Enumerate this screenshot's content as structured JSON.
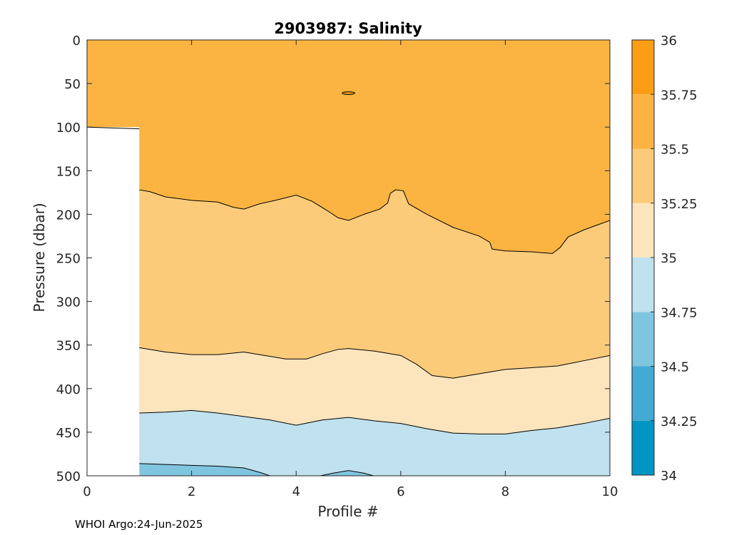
{
  "chart_data": {
    "type": "contour",
    "title": "2903987:  Salinity",
    "xlabel": "Profile #",
    "ylabel": "Pressure (dbar)",
    "footer": "WHOI Argo:24-Jun-2025",
    "xlim": [
      0,
      10
    ],
    "ylim": [
      0,
      500
    ],
    "y_reversed": true,
    "grid": false,
    "x_ticks": [
      "0",
      "2",
      "4",
      "6",
      "8",
      "10"
    ],
    "y_ticks": [
      "0",
      "50",
      "100",
      "150",
      "200",
      "250",
      "300",
      "350",
      "400",
      "450",
      "500"
    ],
    "no_data_region": {
      "x": [
        0,
        1
      ],
      "y_from": 100,
      "y_to": 500
    },
    "colorbar": {
      "levels": [
        34,
        34.25,
        34.5,
        34.75,
        35,
        35.25,
        35.5,
        35.75,
        36
      ],
      "tick_labels": [
        "34",
        "34.25",
        "34.5",
        "34.75",
        "35",
        "35.25",
        "35.5",
        "35.75",
        "36"
      ],
      "colors": [
        "#0095c2",
        "#43aad3",
        "#80c5e0",
        "#c0e1ee",
        "#fce5bd",
        "#fbcb7a",
        "#fbb441",
        "#fc9e15"
      ]
    },
    "contours": [
      {
        "level": 35.5,
        "points": [
          [
            1,
            172
          ],
          [
            1.2,
            174
          ],
          [
            1.5,
            180
          ],
          [
            2,
            184
          ],
          [
            2.5,
            186
          ],
          [
            2.8,
            192
          ],
          [
            3,
            194
          ],
          [
            3.3,
            188
          ],
          [
            3.6,
            184
          ],
          [
            4,
            178
          ],
          [
            4.3,
            185
          ],
          [
            4.6,
            196
          ],
          [
            4.8,
            204
          ],
          [
            5,
            207
          ],
          [
            5.3,
            200
          ],
          [
            5.6,
            194
          ],
          [
            5.75,
            187
          ],
          [
            5.8,
            176
          ],
          [
            5.9,
            172
          ],
          [
            6.05,
            173
          ],
          [
            6.15,
            188
          ],
          [
            6.5,
            200
          ],
          [
            7,
            215
          ],
          [
            7.5,
            225
          ],
          [
            7.7,
            232
          ],
          [
            7.75,
            240
          ],
          [
            8,
            242
          ],
          [
            8.5,
            243
          ],
          [
            8.9,
            245
          ],
          [
            9.05,
            238
          ],
          [
            9.2,
            226
          ],
          [
            9.5,
            218
          ],
          [
            10,
            207
          ]
        ]
      },
      {
        "level": 35.25,
        "points": [
          [
            1,
            353
          ],
          [
            1.5,
            358
          ],
          [
            2,
            361
          ],
          [
            2.5,
            361
          ],
          [
            3,
            358
          ],
          [
            3.4,
            362
          ],
          [
            3.8,
            366
          ],
          [
            4.2,
            366
          ],
          [
            4.5,
            360
          ],
          [
            4.8,
            355
          ],
          [
            5,
            354
          ],
          [
            5.5,
            357
          ],
          [
            6,
            362
          ],
          [
            6.3,
            372
          ],
          [
            6.6,
            385
          ],
          [
            7,
            388
          ],
          [
            7.5,
            383
          ],
          [
            8,
            378
          ],
          [
            8.5,
            376
          ],
          [
            9,
            374
          ],
          [
            9.5,
            368
          ],
          [
            10,
            362
          ]
        ]
      },
      {
        "level": 35.0,
        "points": [
          [
            1,
            428
          ],
          [
            1.5,
            427
          ],
          [
            2,
            425
          ],
          [
            2.5,
            428
          ],
          [
            3,
            432
          ],
          [
            3.5,
            436
          ],
          [
            4,
            442
          ],
          [
            4.5,
            436
          ],
          [
            5,
            433
          ],
          [
            5.5,
            437
          ],
          [
            6,
            440
          ],
          [
            6.5,
            446
          ],
          [
            7,
            451
          ],
          [
            7.5,
            452
          ],
          [
            8,
            452
          ],
          [
            8.5,
            448
          ],
          [
            9,
            445
          ],
          [
            9.5,
            440
          ],
          [
            10,
            434
          ]
        ]
      },
      {
        "level": 34.75,
        "points": [
          [
            1,
            486
          ],
          [
            1.5,
            487
          ],
          [
            2,
            488
          ],
          [
            2.5,
            489
          ],
          [
            3,
            491
          ],
          [
            3.3,
            496
          ],
          [
            3.6,
            502
          ]
        ]
      },
      {
        "level": 34.75,
        "points": [
          [
            4.3,
            502
          ],
          [
            4.7,
            497
          ],
          [
            5,
            494
          ],
          [
            5.3,
            497
          ],
          [
            5.6,
            502
          ]
        ]
      }
    ],
    "islands": [
      {
        "level": 35.75,
        "center": [
          5,
          61
        ],
        "half_width": 0.12,
        "half_height": 1.5
      }
    ]
  }
}
